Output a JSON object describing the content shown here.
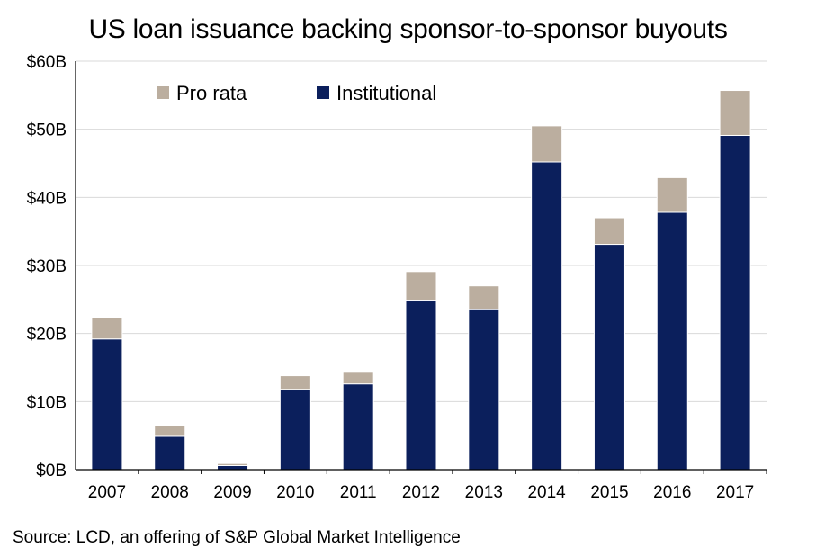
{
  "chart_data": {
    "type": "bar",
    "stacked": true,
    "title": "US loan issuance backing sponsor-to-sponsor buyouts",
    "xlabel": "",
    "ylabel": "",
    "ylim": [
      0,
      60
    ],
    "y_ticks": [
      0,
      10,
      20,
      30,
      40,
      50,
      60
    ],
    "y_tick_labels": [
      "$0B",
      "$10B",
      "$20B",
      "$30B",
      "$40B",
      "$50B",
      "$60B"
    ],
    "grid": true,
    "legend_position": "top-left",
    "categories": [
      "2007",
      "2008",
      "2009",
      "2010",
      "2011",
      "2012",
      "2013",
      "2014",
      "2015",
      "2016",
      "2017"
    ],
    "series": [
      {
        "name": "Institutional",
        "color": "#0b1f5c",
        "values": [
          19.2,
          4.9,
          0.6,
          11.8,
          12.6,
          24.8,
          23.5,
          45.2,
          33.1,
          37.8,
          49.1
        ]
      },
      {
        "name": "Pro rata",
        "color": "#bbae9f",
        "values": [
          3.2,
          1.6,
          0.3,
          2.0,
          1.7,
          4.3,
          3.5,
          5.3,
          3.9,
          5.1,
          6.6
        ]
      }
    ],
    "legend": [
      "Pro rata",
      "Institutional"
    ]
  },
  "source": "Source: LCD,  an offering of S&P Global Market Intelligence"
}
